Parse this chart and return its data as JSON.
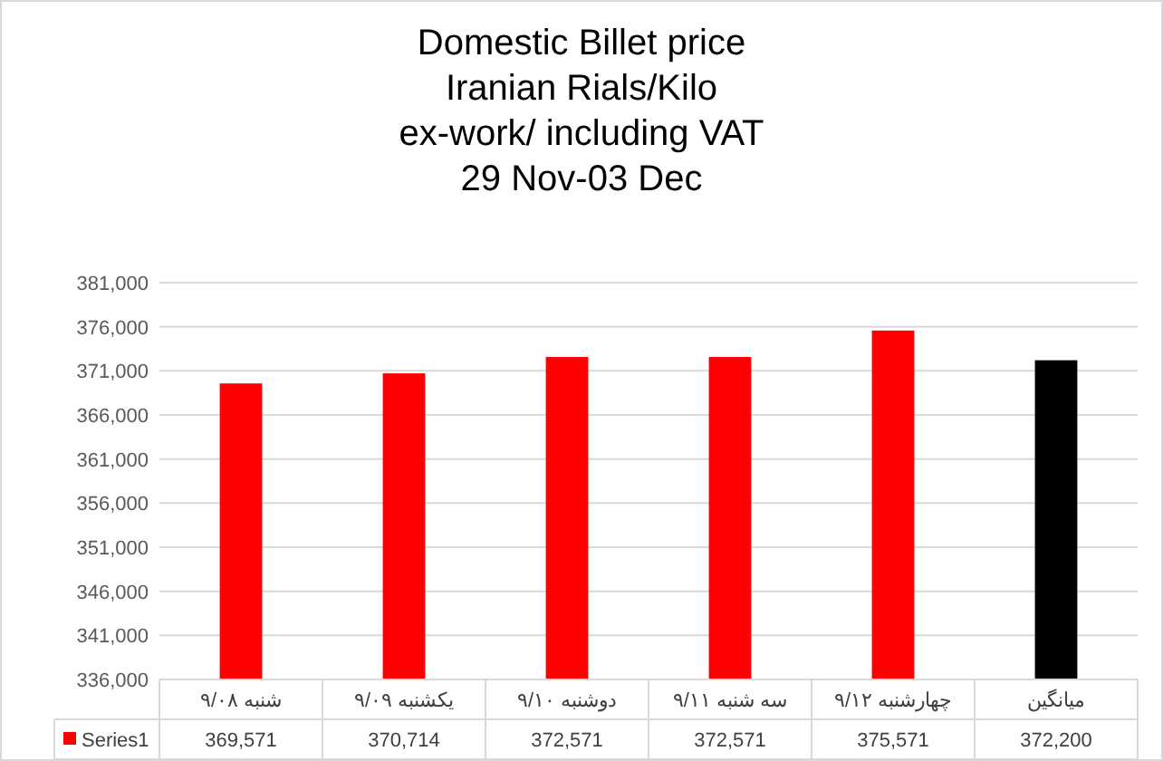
{
  "chart_data": {
    "type": "bar",
    "title": "Domestic  Billet price\nIranian Rials/Kilo\nex-work/ including VAT\n29 Nov-03 Dec",
    "categories": [
      "شنبه ۹/۰۸",
      "یکشنبه ۹/۰۹",
      "دوشنبه ۹/۱۰",
      "سه شنبه ۹/۱۱",
      "چهارشنبه ۹/۱۲",
      "میانگین"
    ],
    "series": [
      {
        "name": "Series1",
        "color": "#ff0000",
        "colors": [
          "#ff0000",
          "#ff0000",
          "#ff0000",
          "#ff0000",
          "#ff0000",
          "#000000"
        ],
        "values": [
          369571,
          370714,
          372571,
          372571,
          375571,
          372200
        ],
        "value_labels": [
          "369,571",
          "370,714",
          "372,571",
          "372,571",
          "375,571",
          "372,200"
        ]
      }
    ],
    "ylim": [
      336000,
      381000
    ],
    "yticks": [
      {
        "value": 336000,
        "label": "336,000"
      },
      {
        "value": 341000,
        "label": "341,000"
      },
      {
        "value": 346000,
        "label": "346,000"
      },
      {
        "value": 351000,
        "label": "351,000"
      },
      {
        "value": 356000,
        "label": "356,000"
      },
      {
        "value": 361000,
        "label": "361,000"
      },
      {
        "value": 366000,
        "label": "366,000"
      },
      {
        "value": 371000,
        "label": "371,000"
      },
      {
        "value": 376000,
        "label": "376,000"
      },
      {
        "value": 381000,
        "label": "381,000"
      }
    ],
    "grid": "y",
    "legend": "bottom"
  }
}
